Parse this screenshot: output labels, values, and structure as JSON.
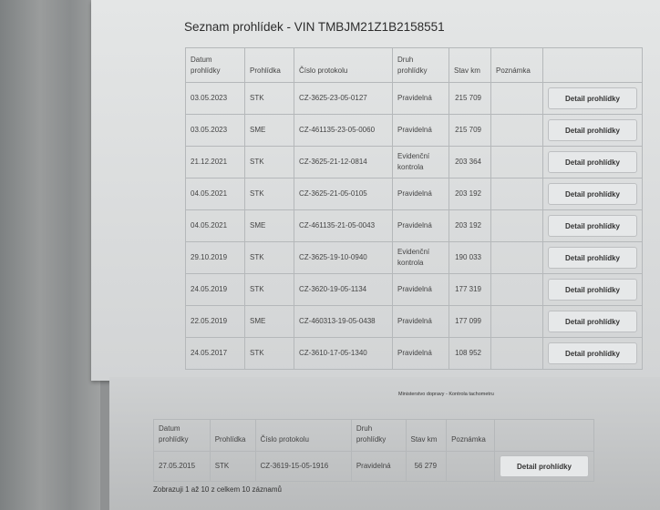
{
  "title": "Seznam prohlídek - VIN TMBJM21Z1B2158551",
  "headers": [
    "Datum prohlídky",
    "Prohlídka",
    "Číslo protokolu",
    "Druh prohlídky",
    "Stav km",
    "Poznámka",
    ""
  ],
  "detail_label": "Detail prohlídky",
  "rows_page1": [
    [
      "03.05.2023",
      "STK",
      "CZ-3625-23-05-0127",
      "Pravidelná",
      "215 709",
      ""
    ],
    [
      "03.05.2023",
      "SME",
      "CZ-461135-23-05-0060",
      "Pravidelná",
      "215 709",
      ""
    ],
    [
      "21.12.2021",
      "STK",
      "CZ-3625-21-12-0814",
      "Evidenční kontrola",
      "203 364",
      ""
    ],
    [
      "04.05.2021",
      "STK",
      "CZ-3625-21-05-0105",
      "Pravidelná",
      "203 192",
      ""
    ],
    [
      "04.05.2021",
      "SME",
      "CZ-461135-21-05-0043",
      "Pravidelná",
      "203 192",
      ""
    ],
    [
      "29.10.2019",
      "STK",
      "CZ-3625-19-10-0940",
      "Evidenční kontrola",
      "190 033",
      ""
    ],
    [
      "24.05.2019",
      "STK",
      "CZ-3620-19-05-1134",
      "Pravidelná",
      "177 319",
      ""
    ],
    [
      "22.05.2019",
      "SME",
      "CZ-460313-19-05-0438",
      "Pravidelná",
      "177 099",
      ""
    ],
    [
      "24.05.2017",
      "STK",
      "CZ-3610-17-05-1340",
      "Pravidelná",
      "108 952",
      ""
    ]
  ],
  "footer_ministry": "Ministerstvo dopravy - Kontrola tachometru",
  "rows_page2": [
    [
      "27.05.2015",
      "STK",
      "CZ-3619-15-05-1916",
      "Pravidelná",
      "56 279",
      ""
    ]
  ],
  "pagination_info": "Zobrazuji 1 až 10 z celkem 10 záznamů"
}
